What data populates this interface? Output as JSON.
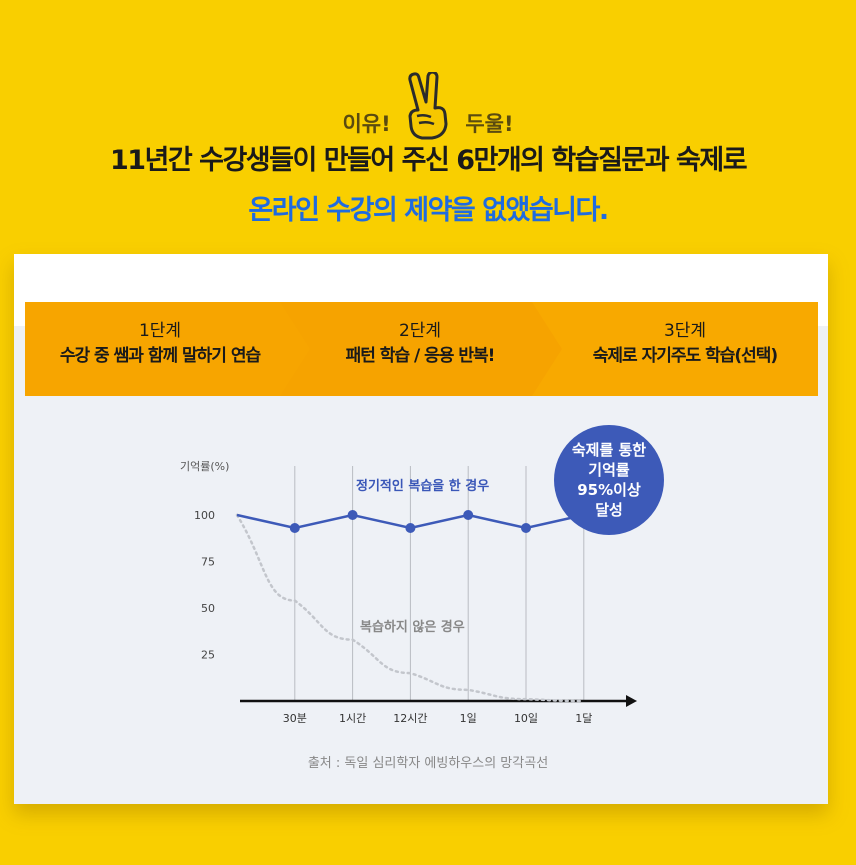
{
  "header": {
    "reason_left": "이유!",
    "reason_right": "두울!",
    "headline_1": "11년간 수강생들이 만들어 주신 6만개의 학습질문과 숙제로",
    "headline_2": "온라인 수강의 제약을 없앴습니다."
  },
  "steps": [
    {
      "num": "1단계",
      "title": "수강 중 쌤과 함께 말하기 연습"
    },
    {
      "num": "2단계",
      "title": "패턴 학습 / 응용 반복!"
    },
    {
      "num": "3단계",
      "title": "숙제로 자기주도 학습(선택)"
    }
  ],
  "badge": {
    "line1": "숙제를 통한",
    "line2": "기억률",
    "line3": "95%이상",
    "line4": "달성"
  },
  "source": "출처 : 독일 심리학자 에빙하우스의 망각곡선",
  "colors": {
    "background": "#f9cf00",
    "step": "#f7a400",
    "line": "#3d5ab8",
    "headline_blue": "#1f6be0"
  },
  "chart_data": {
    "type": "line",
    "ylabel": "기억률(%)",
    "yticks": [
      100,
      75,
      50,
      25
    ],
    "ylim": [
      0,
      100
    ],
    "categories": [
      "30분",
      "1시간",
      "12시간",
      "1일",
      "10일",
      "1달"
    ],
    "series": [
      {
        "name": "정기적인 복습을 한 경우",
        "values": [
          100,
          93,
          100,
          93,
          100,
          93,
          100
        ],
        "x": [
          0,
          1,
          2,
          3,
          4,
          5,
          6
        ]
      },
      {
        "name": "복습하지 않은 경우",
        "values": [
          100,
          54,
          33,
          15,
          6,
          1,
          0
        ],
        "x": [
          0,
          1,
          2,
          3,
          4,
          5,
          6
        ]
      }
    ]
  }
}
